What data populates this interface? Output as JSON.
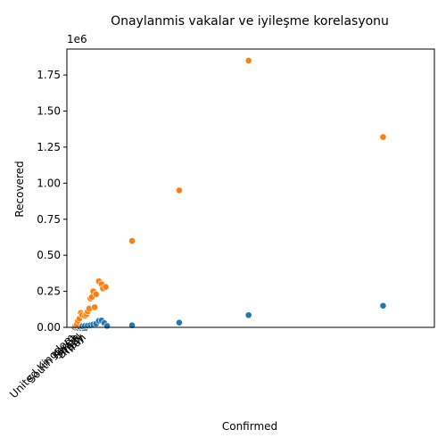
{
  "chart_data": {
    "type": "scatter",
    "title": "Onaylanmis vakalar ve iyileşme korelasyonu",
    "xlabel": "Confirmed",
    "ylabel": "Recovered",
    "y_offset_label": "1e6",
    "ylim": [
      0,
      1930000
    ],
    "yticks": [
      0,
      250000,
      500000,
      750000,
      1000000,
      1250000,
      1500000,
      1750000
    ],
    "ytick_labels": [
      "0.00",
      "0.25",
      "0.50",
      "0.75",
      "1.00",
      "1.25",
      "1.50",
      "1.75"
    ],
    "xlim": [
      -50000,
      2600000
    ],
    "xtick_labels_note": "overlapping rotated country tick labels, partially legible",
    "xtick_labels": [
      "United Kingdom",
      "South Korea",
      "Spain",
      "Brazil",
      "Italy",
      "Iran"
    ],
    "grid": false,
    "legend": "none",
    "series": [
      {
        "color": "#1f77b4",
        "points": [
          [
            5000,
            2000
          ],
          [
            20000,
            3000
          ],
          [
            40000,
            5000
          ],
          [
            60000,
            8000
          ],
          [
            80000,
            10000
          ],
          [
            100000,
            12000
          ],
          [
            120000,
            15000
          ],
          [
            140000,
            20000
          ],
          [
            160000,
            25000
          ],
          [
            180000,
            45000
          ],
          [
            200000,
            48000
          ],
          [
            220000,
            30000
          ],
          [
            240000,
            10000
          ],
          [
            420000,
            14000
          ],
          [
            760000,
            33000
          ],
          [
            1260000,
            85000
          ],
          [
            2230000,
            150000
          ]
        ]
      },
      {
        "color": "#ff7f0e",
        "points": [
          [
            10000,
            10000
          ],
          [
            20000,
            20000
          ],
          [
            30000,
            45000
          ],
          [
            40000,
            60000
          ],
          [
            50000,
            100000
          ],
          [
            60000,
            85000
          ],
          [
            80000,
            80000
          ],
          [
            90000,
            90000
          ],
          [
            100000,
            110000
          ],
          [
            110000,
            130000
          ],
          [
            120000,
            200000
          ],
          [
            130000,
            210000
          ],
          [
            140000,
            250000
          ],
          [
            150000,
            140000
          ],
          [
            160000,
            230000
          ],
          [
            180000,
            320000
          ],
          [
            200000,
            300000
          ],
          [
            210000,
            270000
          ],
          [
            230000,
            280000
          ],
          [
            420000,
            600000
          ],
          [
            760000,
            950000
          ],
          [
            1260000,
            1850000
          ],
          [
            2230000,
            1320000
          ]
        ]
      }
    ]
  }
}
